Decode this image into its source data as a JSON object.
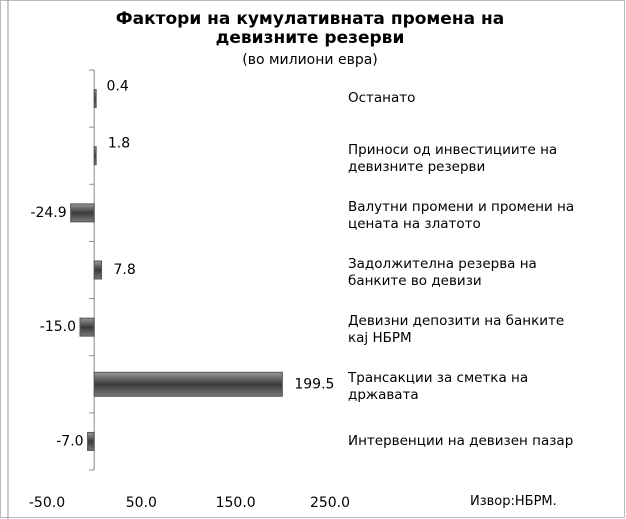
{
  "chart_data": {
    "type": "bar",
    "orientation": "horizontal",
    "title": "Фактори на кумулативната промена на\nдевизните резерви",
    "subtitle": "(во милиони  евра)",
    "source": "Извор:НБРМ.",
    "categories": [
      "Останато",
      "Приноси од инвестициите на\nдевизните резерви",
      "Валутни промени и промени на\nцената на златото",
      "Задолжителна резерва на\nбанките во девизи",
      "Девизни депозити на банките\nкај НБРМ",
      "Трансакции за сметка на\nдржавата",
      "Интервенции на девизен пазар"
    ],
    "values": [
      0.4,
      1.8,
      -24.9,
      7.8,
      -15.0,
      199.5,
      -7.0
    ],
    "value_labels": [
      "0.4",
      "1.8",
      "-24.9",
      "7.8",
      "-15.0",
      "199.5",
      "-7.0"
    ],
    "color": "#555555",
    "xlim": [
      -50,
      250
    ],
    "xticks": [
      {
        "value": -50,
        "label": "-50.0"
      },
      {
        "value": 50,
        "label": "50.0"
      },
      {
        "value": 150,
        "label": "150.0"
      },
      {
        "value": 250,
        "label": "250.0"
      }
    ],
    "grid": false
  }
}
